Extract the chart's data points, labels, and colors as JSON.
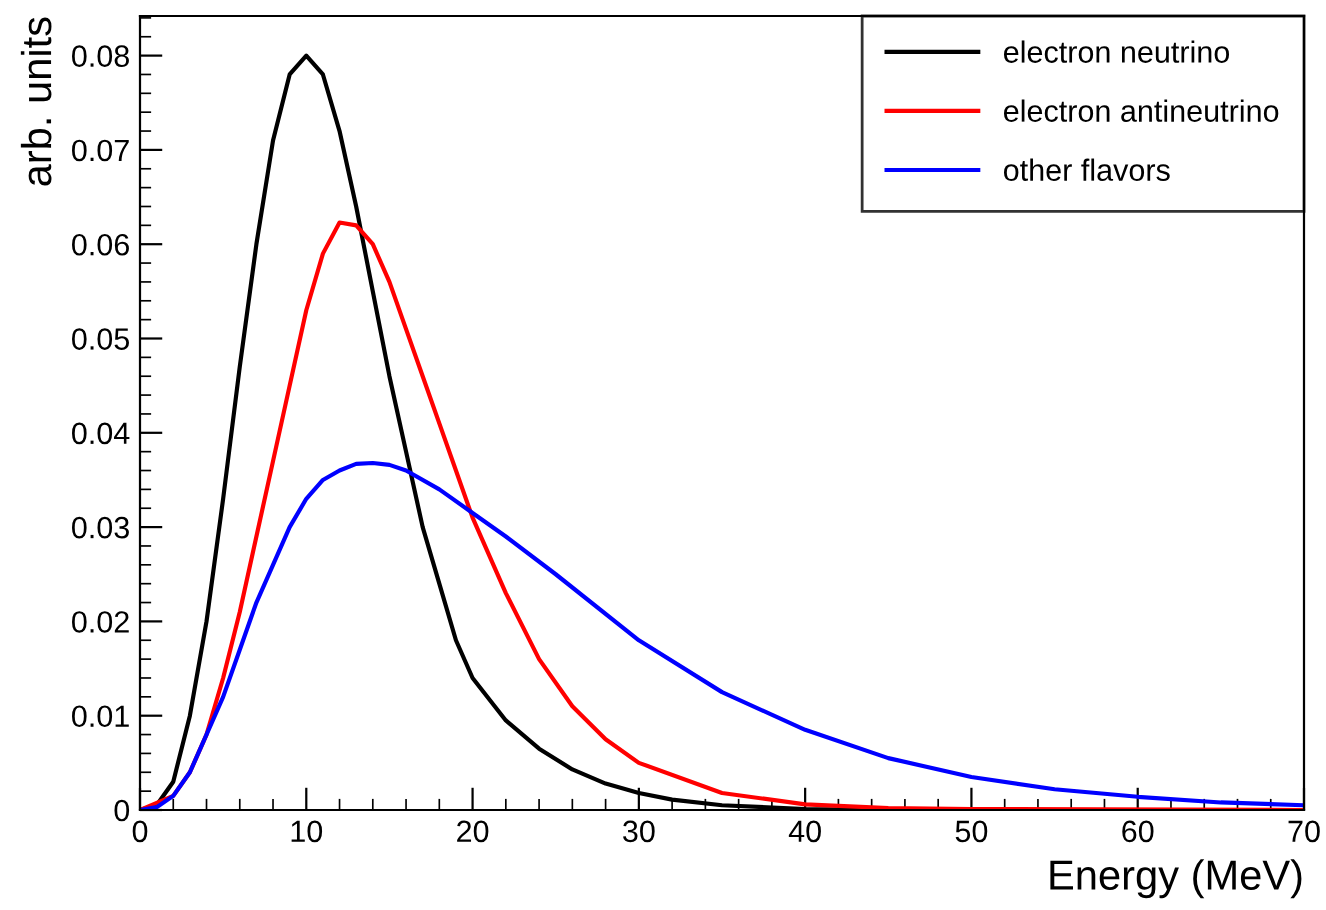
{
  "chart_data": {
    "type": "line",
    "xlabel": "Energy (MeV)",
    "ylabel": "arb. units",
    "xlim": [
      0,
      70
    ],
    "ylim": [
      0,
      0.0842
    ],
    "xticks": [
      0,
      10,
      20,
      30,
      40,
      50,
      60,
      70
    ],
    "yticks": [
      0,
      0.01,
      0.02,
      0.03,
      0.04,
      0.05,
      0.06,
      0.07,
      0.08
    ],
    "grid": false,
    "legend": "top right",
    "marker": "none",
    "line_style": "solid",
    "series": [
      {
        "name": "electron neutrino",
        "color": "#000000",
        "x": [
          0,
          1,
          2,
          3,
          4,
          5,
          6,
          7,
          8,
          9,
          10,
          11,
          12,
          13,
          14,
          15,
          16,
          17,
          18,
          19,
          20,
          22,
          24,
          26,
          28,
          30,
          32,
          35,
          40,
          45,
          70
        ],
        "values": [
          0,
          0.0005,
          0.003,
          0.01,
          0.02,
          0.033,
          0.047,
          0.06,
          0.071,
          0.078,
          0.08,
          0.078,
          0.072,
          0.064,
          0.055,
          0.046,
          0.038,
          0.03,
          0.024,
          0.018,
          0.014,
          0.0095,
          0.0065,
          0.0043,
          0.0028,
          0.0018,
          0.0011,
          0.0005,
          0.0001,
          0,
          0
        ]
      },
      {
        "name": "electron antineutrino",
        "color": "#ff0000",
        "x": [
          0,
          2,
          3,
          4,
          5,
          6,
          7,
          8,
          9,
          10,
          11,
          12,
          13,
          14,
          15,
          16,
          17,
          18,
          19,
          20,
          22,
          24,
          26,
          28,
          30,
          35,
          40,
          45,
          50,
          70
        ],
        "values": [
          0,
          0.0015,
          0.004,
          0.008,
          0.014,
          0.021,
          0.029,
          0.037,
          0.045,
          0.053,
          0.059,
          0.0623,
          0.062,
          0.06,
          0.056,
          0.051,
          0.046,
          0.041,
          0.036,
          0.031,
          0.023,
          0.016,
          0.011,
          0.0075,
          0.005,
          0.0018,
          0.0006,
          0.0002,
          0.0001,
          0
        ]
      },
      {
        "name": "other flavors",
        "color": "#0000ff",
        "x": [
          0,
          1,
          2,
          3,
          4,
          5,
          6,
          7,
          8,
          9,
          10,
          11,
          12,
          13,
          14,
          15,
          16,
          18,
          20,
          22,
          25,
          30,
          35,
          40,
          45,
          50,
          55,
          60,
          65,
          70
        ],
        "values": [
          0,
          0.0003,
          0.0015,
          0.004,
          0.008,
          0.012,
          0.017,
          0.022,
          0.026,
          0.03,
          0.033,
          0.035,
          0.036,
          0.0367,
          0.0368,
          0.0366,
          0.036,
          0.034,
          0.0315,
          0.029,
          0.025,
          0.018,
          0.0125,
          0.0085,
          0.0055,
          0.0035,
          0.0022,
          0.0014,
          0.0008,
          0.0005
        ]
      }
    ]
  }
}
